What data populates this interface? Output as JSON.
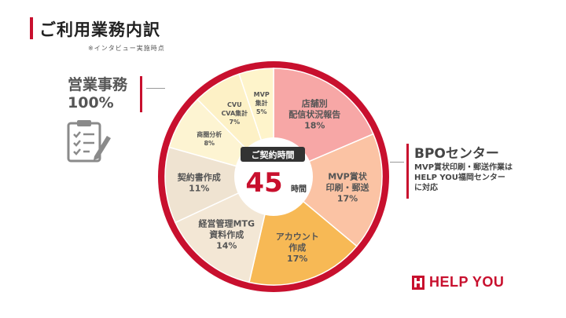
{
  "header": {
    "title": "ご利用業務内訳",
    "note": "※インタビュー実施時点"
  },
  "sales": {
    "title": "営業事務",
    "pct": "100%"
  },
  "bpo": {
    "title": "BPOセンター",
    "desc": [
      "MVP賞状印刷・郵送作業は",
      "HELP YOU福岡センター",
      "に対応"
    ]
  },
  "center": {
    "label": "ご契約時間",
    "value": "45",
    "unit": "時間"
  },
  "brand": {
    "logo_text": "HELP YOU"
  },
  "colors": {
    "accent": "#c8102e",
    "ring": "#c8102e",
    "center_label_bg": "#333333"
  },
  "icons": {
    "sales": "clipboard-checklist-icon",
    "logo": "help-you-logo-icon"
  },
  "chart_data": {
    "type": "pie",
    "total_label": "45 時間",
    "slices": [
      {
        "lines": [
          "店舗別",
          "配信状況報告"
        ],
        "value": 18,
        "pct_label": "18%",
        "color": "#f7a7a6"
      },
      {
        "lines": [
          "MVP賞状",
          "印刷・郵送"
        ],
        "value": 17,
        "pct_label": "17%",
        "color": "#fbc3a4"
      },
      {
        "lines": [
          "アカウント",
          "作成"
        ],
        "value": 17,
        "pct_label": "17%",
        "color": "#f7b955"
      },
      {
        "lines": [
          "経営管理MTG",
          "資料作成"
        ],
        "value": 14,
        "pct_label": "14%",
        "color": "#f3e7d5"
      },
      {
        "lines": [
          "契約書作成"
        ],
        "value": 11,
        "pct_label": "11%",
        "color": "#efe3d1"
      },
      {
        "lines": [
          "商圏分析"
        ],
        "value": 8,
        "pct_label": "8%",
        "color": "#fdf4d2"
      },
      {
        "lines": [
          "CVU",
          "CVA集計"
        ],
        "value": 7,
        "pct_label": "7%",
        "color": "#fdf1c6"
      },
      {
        "lines": [
          "MVP",
          "集計"
        ],
        "value": 5,
        "pct_label": "5%",
        "color": "#fef4cb"
      }
    ]
  }
}
